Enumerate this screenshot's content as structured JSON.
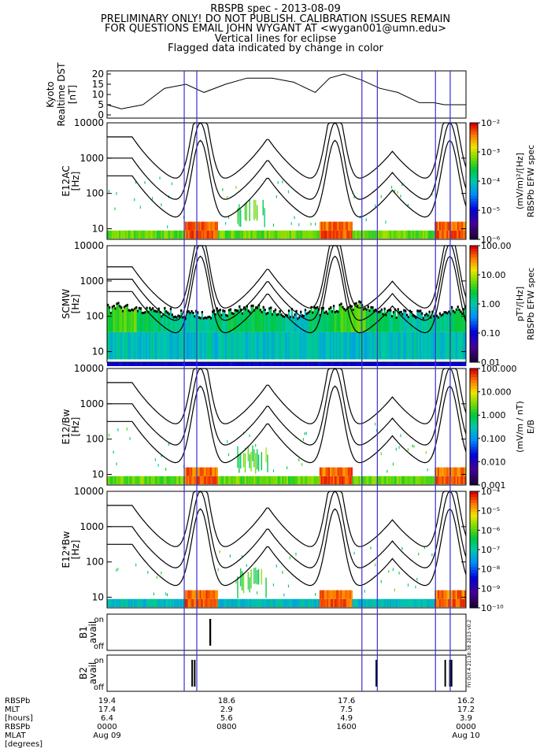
{
  "header": {
    "title": "RBSPB spec - 2013-08-09",
    "line2": "PRELIMINARY ONLY! DO NOT PUBLISH. CALIBRATION ISSUES REMAIN",
    "line3": "FOR QUESTIONS EMAIL JOHN WYGANT AT <wygan001@umn.edu>",
    "line4": "Vertical lines for eclipse",
    "line5": "Flagged data indicated by change in color"
  },
  "colors": {
    "eclipse_line": "#3b2fd6",
    "axes": "#000000",
    "background": "#ffffff"
  },
  "chart_data": [
    {
      "type": "line",
      "id": "dst",
      "ylabel": [
        "Kyoto",
        "Realtime DST",
        "[nT]"
      ],
      "ylim": [
        0,
        20
      ],
      "yticks": [
        "20",
        "15",
        "10",
        "5",
        "0"
      ],
      "x": [
        0.0,
        0.04,
        0.1,
        0.16,
        0.22,
        0.27,
        0.33,
        0.39,
        0.46,
        0.52,
        0.58,
        0.62,
        0.66,
        0.71,
        0.76,
        0.81,
        0.87,
        0.91,
        0.94,
        0.97,
        1.0
      ],
      "y": [
        5,
        3,
        5,
        13,
        15,
        11,
        15,
        18,
        18,
        16,
        11,
        18,
        20,
        17,
        13,
        11,
        6,
        6,
        5,
        5,
        5
      ]
    },
    {
      "type": "heatmap",
      "id": "e12ac",
      "ylabel": [
        "E12AC",
        "[Hz]"
      ],
      "yticks": [
        "10000",
        "1000",
        "100",
        "10"
      ],
      "colorbar_label": [
        "(mV/m)²/[Hz]",
        "RBSPb EFW spec"
      ],
      "colorbar_ticks": [
        "10⁻²",
        "10⁻³",
        "10⁻⁴",
        "10⁻⁵",
        "10⁻⁶"
      ]
    },
    {
      "type": "heatmap",
      "id": "scmw",
      "ylabel": [
        "SCMW",
        "[Hz]"
      ],
      "yticks": [
        "10000",
        "1000",
        "100",
        "10"
      ],
      "colorbar_label": [
        "pT²/[Hz]",
        "RBSPb EFW spec"
      ],
      "colorbar_ticks": [
        "100.00",
        "10.00",
        "1.00",
        "0.10",
        "0.01"
      ]
    },
    {
      "type": "heatmap",
      "id": "e12bw",
      "ylabel": [
        "E12/Bw",
        "[Hz]"
      ],
      "yticks": [
        "10000",
        "1000",
        "100",
        "10"
      ],
      "colorbar_label": [
        "(mV/m / nT)",
        "E/B"
      ],
      "colorbar_ticks": [
        "100.000",
        "10.000",
        "1.000",
        "0.100",
        "0.010",
        "0.001"
      ]
    },
    {
      "type": "heatmap",
      "id": "e12xbw",
      "ylabel": [
        "E12*Bw",
        "[Hz]"
      ],
      "yticks": [
        "10000",
        "1000",
        "100",
        "10"
      ],
      "colorbar_ticks": [
        "10⁻⁴",
        "10⁻⁵",
        "10⁻⁶",
        "10⁻⁷",
        "10⁻⁸",
        "10⁻⁹",
        "10⁻¹⁰"
      ]
    },
    {
      "type": "line",
      "id": "b1",
      "ylabel": [
        "B1",
        "avail"
      ],
      "yticks": [
        "on",
        "off"
      ],
      "on_intervals": [
        [
          0.285,
          0.29
        ]
      ]
    },
    {
      "type": "line",
      "id": "b2",
      "ylabel": [
        "B2",
        "avail"
      ],
      "yticks": [
        "on",
        "off"
      ],
      "on_intervals": [
        [
          0.235,
          0.238
        ],
        [
          0.242,
          0.245
        ],
        [
          0.748,
          0.751
        ],
        [
          0.94,
          0.943
        ],
        [
          0.953,
          0.962
        ]
      ]
    }
  ],
  "eclipse_lines": [
    0.215,
    0.25,
    0.71,
    0.753,
    0.915,
    0.956
  ],
  "side_stamp": "Fri Oct 4 21:38:38 2013 v0.2",
  "footer": {
    "labels": [
      "RBSPb",
      "MLT",
      "[hours]",
      "RBSPb",
      "MLAT",
      "[degrees]"
    ],
    "columns": [
      {
        "pos": 0.0,
        "mlt": "19.4",
        "hours": "17.4",
        "mlat": "6.4",
        "time": "0000",
        "date": "Aug 09"
      },
      {
        "pos": 0.333,
        "mlt": "18.6",
        "hours": "2.9",
        "mlat": "5.6",
        "time": "0800",
        "date": ""
      },
      {
        "pos": 0.667,
        "mlt": "17.6",
        "hours": "7.5",
        "mlat": "4.9",
        "time": "1600",
        "date": ""
      },
      {
        "pos": 1.0,
        "mlt": "16.2",
        "hours": "17.2",
        "mlat": "3.9",
        "time": "0000",
        "date": "Aug 10"
      }
    ]
  }
}
